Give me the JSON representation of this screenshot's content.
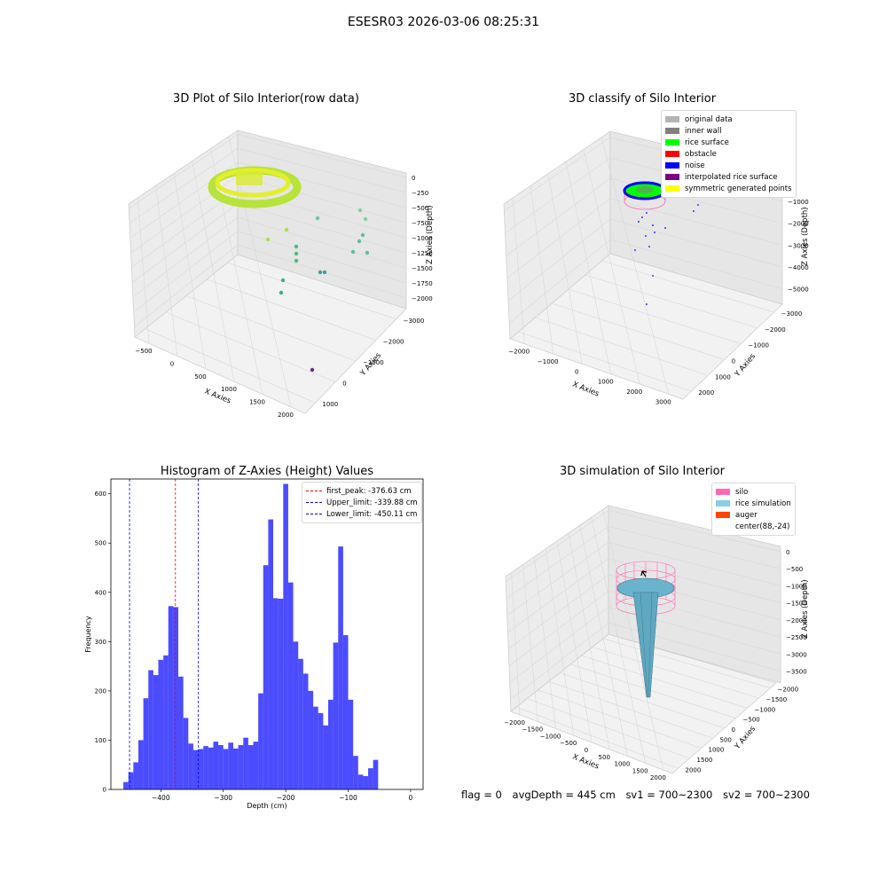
{
  "figure": {
    "suptitle": "ESESR03 2026-03-06 08:25:31"
  },
  "chart_data": [
    {
      "type": "scatter3d",
      "title": "3D Plot of Silo Interior(row data)",
      "xlabel": "X Axies",
      "ylabel": "Y Axies",
      "zlabel": "Z Axies (Depth)",
      "xticks": [
        "−500",
        "0",
        "500",
        "1000",
        "1500",
        "2000"
      ],
      "yticks": [
        "1000",
        "0",
        "−1000",
        "−2000",
        "−3000"
      ],
      "zticks": [
        "0",
        "−250",
        "−500",
        "−750",
        "−1000",
        "−1250",
        "−1500",
        "−1750",
        "−2000"
      ],
      "xlim": [
        -600,
        2000
      ],
      "ylim": [
        -3000,
        1000
      ],
      "zlim": [
        -2000,
        0
      ],
      "colormap": "viridis",
      "grid": true
    },
    {
      "type": "scatter3d",
      "title": "3D classify of Silo Interior",
      "xlabel": "X Axies",
      "ylabel": "Y Axies",
      "zlabel": "Z Axies (Depth)",
      "xticks": [
        "−2000",
        "−1000",
        "0",
        "1000",
        "2000",
        "3000"
      ],
      "yticks": [
        "2000",
        "1000",
        "0",
        "−1000",
        "−2000",
        "−3000"
      ],
      "zticks": [
        "0",
        "−1000",
        "−2000",
        "−3000",
        "−4000",
        "−5000"
      ],
      "legend_position": "top-right",
      "legend": [
        {
          "label": "original data",
          "color": "#b3b3b3"
        },
        {
          "label": "inner wall",
          "color": "#808080"
        },
        {
          "label": "rice surface",
          "color": "#00ff00"
        },
        {
          "label": "obstacle",
          "color": "#ff0000"
        },
        {
          "label": "noise",
          "color": "#0000ff"
        },
        {
          "label": "interpolated rice surface",
          "color": "#800080"
        },
        {
          "label": "symmetric generated points",
          "color": "#ffff00"
        }
      ],
      "grid": true
    },
    {
      "type": "bar",
      "title": "Histogram of Z-Axies (Height) Values",
      "xlabel": "Depth (cm)",
      "ylabel": "Frequency",
      "xlim": [
        -480,
        20
      ],
      "ylim": [
        0,
        630
      ],
      "xticks": [
        -400,
        -300,
        -200,
        -100,
        0
      ],
      "yticks": [
        0,
        100,
        200,
        300,
        400,
        500,
        600
      ],
      "bin_start": -460,
      "bin_width": 8,
      "values": [
        15,
        35,
        55,
        100,
        185,
        242,
        232,
        263,
        272,
        372,
        370,
        229,
        145,
        93,
        80,
        82,
        88,
        85,
        97,
        90,
        82,
        95,
        83,
        90,
        105,
        90,
        97,
        195,
        455,
        548,
        388,
        387,
        620,
        420,
        300,
        265,
        235,
        200,
        168,
        155,
        130,
        182,
        298,
        493,
        313,
        182,
        68,
        30,
        27,
        43,
        60
      ],
      "color": "#0000ff",
      "vlines": [
        {
          "label": "first_peak: -376.63 cm",
          "x": -376.63,
          "color": "#ff0000"
        },
        {
          "label": "Upper_limit: -339.88 cm",
          "x": -339.88,
          "color": "#0000ff"
        },
        {
          "label": "Lower_limit: -450.11 cm",
          "x": -450.11,
          "color": "#0000ff"
        }
      ],
      "legend_position": "top-right"
    },
    {
      "type": "surface3d",
      "title": "3D simulation of Silo Interior",
      "xlabel": "X Axies",
      "ylabel": "Y Axies",
      "zlabel": "Z Axies (Depth)",
      "xticks": [
        "−2000",
        "−1500",
        "−1000",
        "−500",
        "0",
        "500",
        "1000",
        "1500",
        "2000"
      ],
      "yticks": [
        "2000",
        "1500",
        "1000",
        "500",
        "0",
        "−500",
        "−1000",
        "−1500",
        "−2000"
      ],
      "zticks": [
        "0",
        "−500",
        "−1000",
        "−1500",
        "−2000",
        "−2500",
        "−3000",
        "−3500"
      ],
      "legend_position": "top-right",
      "legend": [
        {
          "label": "silo",
          "color": "#ff69b4"
        },
        {
          "label": "rice simulation",
          "color": "#87ceeb"
        },
        {
          "label": "auger",
          "color": "#ff4500"
        },
        {
          "label": "center(88,-24)",
          "color": "#ffffff"
        }
      ],
      "grid": true
    }
  ],
  "status": {
    "flag": "flag = 0",
    "avg_depth": "avgDepth = 445 cm",
    "sv1": "sv1 = 700~2300",
    "sv2": "sv2 = 700~2300"
  }
}
